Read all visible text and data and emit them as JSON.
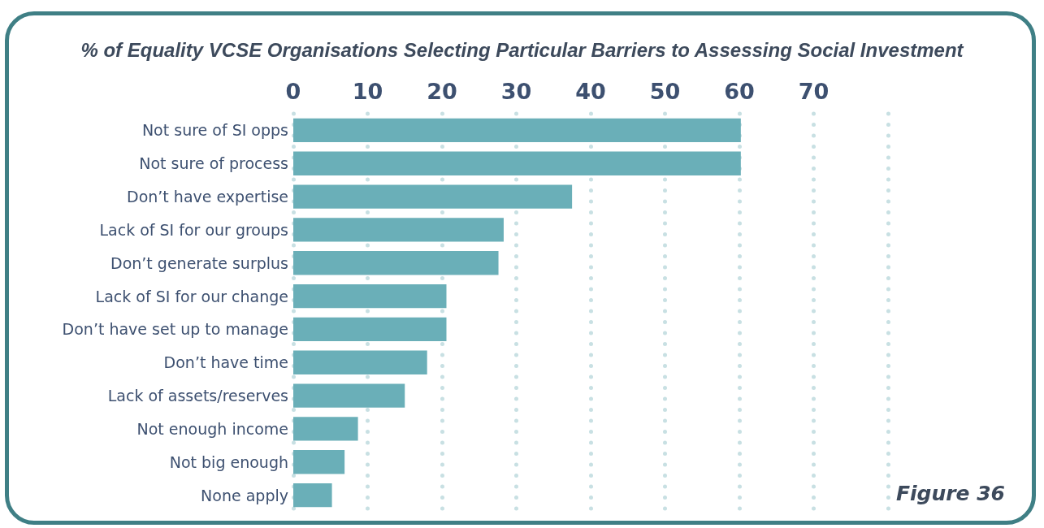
{
  "chart_data": {
    "type": "bar",
    "orientation": "horizontal",
    "title": "% of Equality VCSE Organisations Selecting Particular Barriers to Assessing Social Investment",
    "categories": [
      "Not sure of SI opps",
      "Not sure of process",
      "Don’t have expertise",
      "Lack of SI for our groups",
      "Don’t generate surplus",
      "Lack of SI for our change",
      "Don’t have set up to manage",
      "Don’t have time",
      "Lack of assets/reserves",
      "Not enough income",
      "Not big enough",
      "None apply"
    ],
    "values": [
      60.2,
      60.2,
      37.5,
      28.3,
      27.6,
      20.6,
      20.6,
      18.0,
      15.0,
      8.7,
      6.9,
      5.2
    ],
    "color": "#6aafb8",
    "xlim": [
      0,
      80
    ],
    "xticks": [
      0,
      10,
      20,
      30,
      40,
      50,
      60,
      70,
      {
        "value": 80,
        "label": null
      }
    ],
    "grid": "x",
    "annotations": [
      "Figure 36"
    ]
  }
}
